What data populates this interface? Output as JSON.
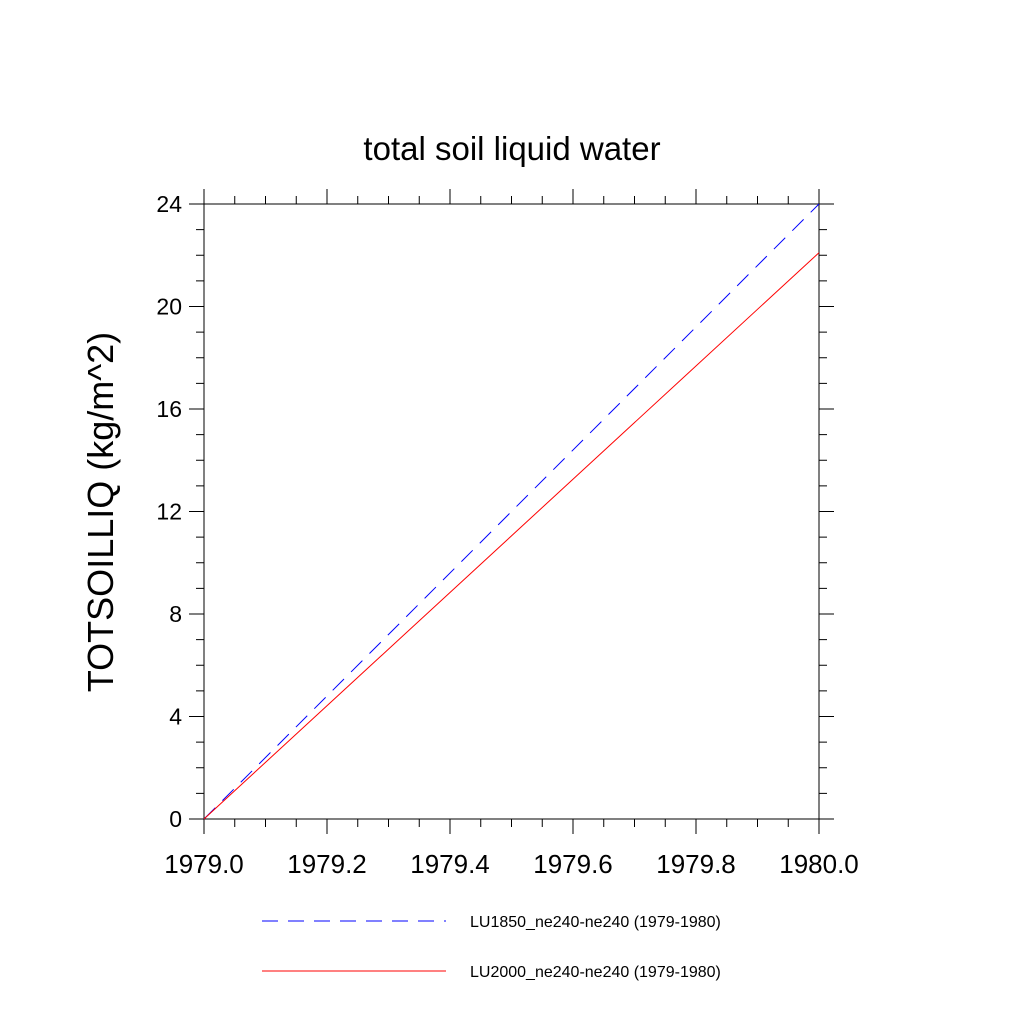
{
  "chart_data": {
    "type": "line",
    "title": "total soil liquid water",
    "xlabel": "",
    "ylabel": "TOTSOILLIQ  (kg/m^2)",
    "xlim": [
      1979.0,
      1980.0
    ],
    "ylim": [
      0,
      24
    ],
    "x_ticks": [
      "1979.0",
      "1979.2",
      "1979.4",
      "1979.6",
      "1979.8",
      "1980.0"
    ],
    "y_ticks": [
      "0",
      "4",
      "8",
      "12",
      "16",
      "20",
      "24"
    ],
    "grid": false,
    "legend_position": "bottom",
    "series": [
      {
        "name": "LU1850_ne240-ne240 (1979-1980)",
        "color": "#0000ff",
        "dash": "dashed",
        "x": [
          1979.0,
          1980.0
        ],
        "y": [
          0,
          24.0
        ]
      },
      {
        "name": "LU2000_ne240-ne240 (1979-1980)",
        "color": "#ff0000",
        "dash": "solid",
        "x": [
          1979.0,
          1980.0
        ],
        "y": [
          0,
          22.1
        ]
      }
    ]
  }
}
